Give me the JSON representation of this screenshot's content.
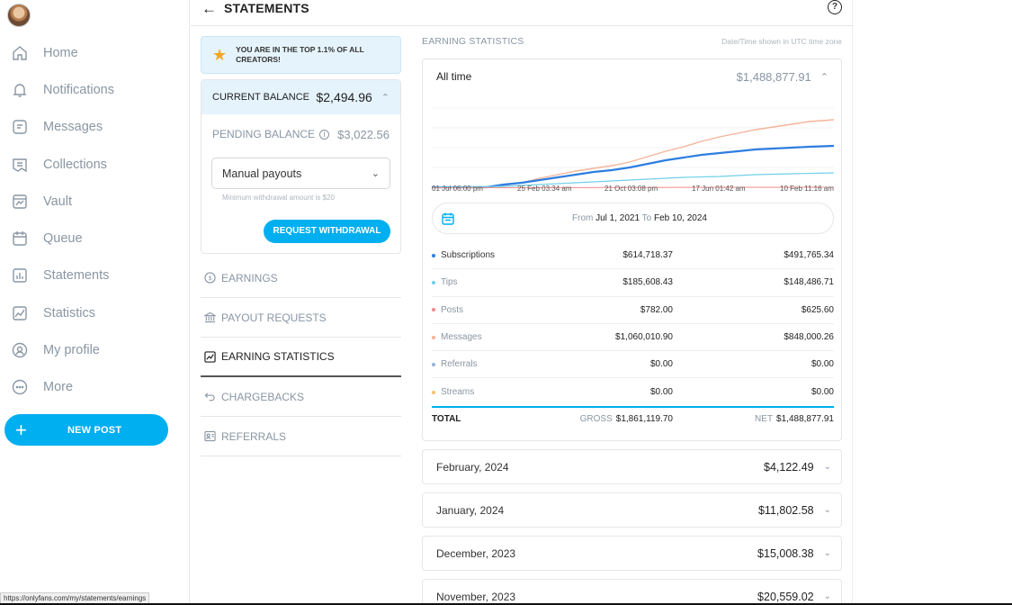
{
  "sidebar": {
    "items": [
      {
        "label": "Home",
        "icon": "home-icon"
      },
      {
        "label": "Notifications",
        "icon": "bell-icon"
      },
      {
        "label": "Messages",
        "icon": "message-icon"
      },
      {
        "label": "Collections",
        "icon": "collections-icon"
      },
      {
        "label": "Vault",
        "icon": "vault-icon"
      },
      {
        "label": "Queue",
        "icon": "calendar-icon"
      },
      {
        "label": "Statements",
        "icon": "statements-icon"
      },
      {
        "label": "Statistics",
        "icon": "statistics-icon"
      },
      {
        "label": "My profile",
        "icon": "profile-icon"
      },
      {
        "label": "More",
        "icon": "more-icon"
      }
    ],
    "new_post": "NEW POST"
  },
  "header": {
    "title": "STATEMENTS"
  },
  "balance": {
    "banner": "YOU ARE IN THE TOP 1.1% OF ALL CREATORS!",
    "current_label": "CURRENT BALANCE",
    "current_value": "$2,494.96",
    "pending_label": "PENDING BALANCE",
    "pending_value": "$3,022.56",
    "payout_mode": "Manual payouts",
    "min_note": "Minimum withdrawal amount is $20",
    "request_button": "REQUEST WITHDRAWAL"
  },
  "menu": [
    {
      "label": "EARNINGS",
      "icon": "dollar-circle-icon"
    },
    {
      "label": "PAYOUT REQUESTS",
      "icon": "bank-icon"
    },
    {
      "label": "EARNING STATISTICS",
      "icon": "chart-icon"
    },
    {
      "label": "CHARGEBACKS",
      "icon": "undo-icon"
    },
    {
      "label": "REFERRALS",
      "icon": "referral-icon"
    }
  ],
  "earning_stats": {
    "title": "EARNING STATISTICS",
    "timezone_note": "Date/Time shown in UTC time zone",
    "period_label": "All time",
    "period_total": "$1,488,877.91",
    "x_ticks": [
      "01 Jul 06:00 pm",
      "25 Feb 03:34 am",
      "21 Oct 03:08 pm",
      "17 Jun 01:42 am",
      "10 Feb 11:16 am"
    ],
    "date_range": {
      "from_label": "From",
      "from": "Jul 1, 2021",
      "to_label": "To",
      "to": "Feb 10, 2024"
    },
    "rows": [
      {
        "name": "Subscriptions",
        "gross": "$614,718.37",
        "net": "$491,765.34",
        "color": "#2d7ee0"
      },
      {
        "name": "Tips",
        "gross": "$185,608.43",
        "net": "$148,486.71",
        "color": "#6fd0e8"
      },
      {
        "name": "Posts",
        "gross": "$782.00",
        "net": "$625.60",
        "color": "#f08a8a"
      },
      {
        "name": "Messages",
        "gross": "$1,060,010.90",
        "net": "$848,000.26",
        "color": "#f4b49a"
      },
      {
        "name": "Referrals",
        "gross": "$0.00",
        "net": "$0.00",
        "color": "#9ab0d8"
      },
      {
        "name": "Streams",
        "gross": "$0.00",
        "net": "$0.00",
        "color": "#f5c16c"
      }
    ],
    "total": {
      "label": "TOTAL",
      "gross_label": "GROSS",
      "gross": "$1,861,119.70",
      "net_label": "NET",
      "net": "$1,488,877.91"
    }
  },
  "months": [
    {
      "label": "February, 2024",
      "value": "$4,122.49"
    },
    {
      "label": "January, 2024",
      "value": "$11,802.58"
    },
    {
      "label": "December, 2023",
      "value": "$15,008.38"
    },
    {
      "label": "November, 2023",
      "value": "$20,559.02"
    }
  ],
  "status_url": "https://onlyfans.com/my/statements/earnings",
  "colors": {
    "accent": "#00aff0",
    "text_muted": "#8a96a3"
  }
}
